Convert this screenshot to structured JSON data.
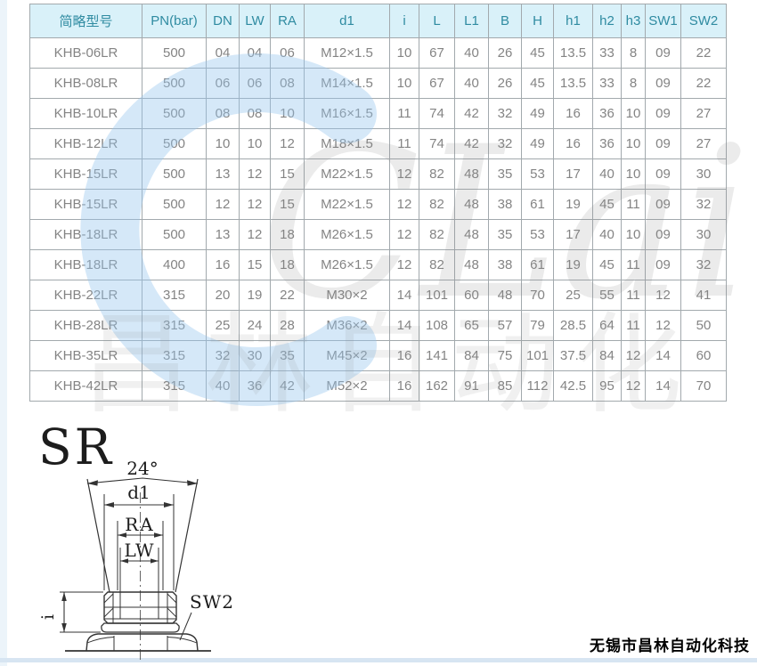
{
  "table": {
    "columns": [
      "简略型号",
      "PN(bar)",
      "DN",
      "LW",
      "RA",
      "d1",
      "i",
      "L",
      "L1",
      "B",
      "H",
      "h1",
      "h2",
      "h3",
      "SW1",
      "SW2"
    ],
    "rows": [
      [
        "KHB-06LR",
        "500",
        "04",
        "04",
        "06",
        "M12×1.5",
        "10",
        "67",
        "40",
        "26",
        "45",
        "13.5",
        "33",
        "8",
        "09",
        "22"
      ],
      [
        "KHB-08LR",
        "500",
        "06",
        "06",
        "08",
        "M14×1.5",
        "10",
        "67",
        "40",
        "26",
        "45",
        "13.5",
        "33",
        "8",
        "09",
        "22"
      ],
      [
        "KHB-10LR",
        "500",
        "08",
        "08",
        "10",
        "M16×1.5",
        "11",
        "74",
        "42",
        "32",
        "49",
        "16",
        "36",
        "10",
        "09",
        "27"
      ],
      [
        "KHB-12LR",
        "500",
        "10",
        "10",
        "12",
        "M18×1.5",
        "11",
        "74",
        "42",
        "32",
        "49",
        "16",
        "36",
        "10",
        "09",
        "27"
      ],
      [
        "KHB-15LR",
        "500",
        "13",
        "12",
        "15",
        "M22×1.5",
        "12",
        "82",
        "48",
        "35",
        "53",
        "17",
        "40",
        "10",
        "09",
        "30"
      ],
      [
        "KHB-15LR",
        "500",
        "12",
        "12",
        "15",
        "M22×1.5",
        "12",
        "82",
        "48",
        "38",
        "61",
        "19",
        "45",
        "11",
        "09",
        "32"
      ],
      [
        "KHB-18LR",
        "500",
        "13",
        "12",
        "18",
        "M26×1.5",
        "12",
        "82",
        "48",
        "35",
        "53",
        "17",
        "40",
        "10",
        "09",
        "30"
      ],
      [
        "KHB-18LR",
        "400",
        "16",
        "15",
        "18",
        "M26×1.5",
        "12",
        "82",
        "48",
        "38",
        "61",
        "19",
        "45",
        "11",
        "09",
        "32"
      ],
      [
        "KHB-22LR",
        "315",
        "20",
        "19",
        "22",
        "M30×2",
        "14",
        "101",
        "60",
        "48",
        "70",
        "25",
        "55",
        "11",
        "12",
        "41"
      ],
      [
        "KHB-28LR",
        "315",
        "25",
        "24",
        "28",
        "M36×2",
        "14",
        "108",
        "65",
        "57",
        "79",
        "28.5",
        "64",
        "11",
        "12",
        "50"
      ],
      [
        "KHB-35LR",
        "315",
        "32",
        "30",
        "35",
        "M45×2",
        "16",
        "141",
        "84",
        "75",
        "101",
        "37.5",
        "84",
        "12",
        "14",
        "60"
      ],
      [
        "KHB-42LR",
        "315",
        "40",
        "36",
        "42",
        "M52×2",
        "16",
        "162",
        "91",
        "85",
        "112",
        "42.5",
        "95",
        "12",
        "14",
        "70"
      ]
    ]
  },
  "diagram": {
    "section_label": "SR",
    "angle_label": "24°",
    "d1_label": "d1",
    "ra_label": "RA",
    "lw_label": "LW",
    "i_label": "i",
    "sw2_label": "SW2"
  },
  "watermark": {
    "latin": "CLair",
    "cjk": "昌林自动化"
  },
  "footer": {
    "company": "无锡市昌林自动化科技"
  },
  "colors": {
    "header_bg": "#d9f1f9",
    "header_text": "#2f8ba1",
    "cell_text": "#848484",
    "border": "#a2a9ad",
    "watermark_blue": "#96c6ee",
    "bottom_strip": "#d7e5f2"
  }
}
